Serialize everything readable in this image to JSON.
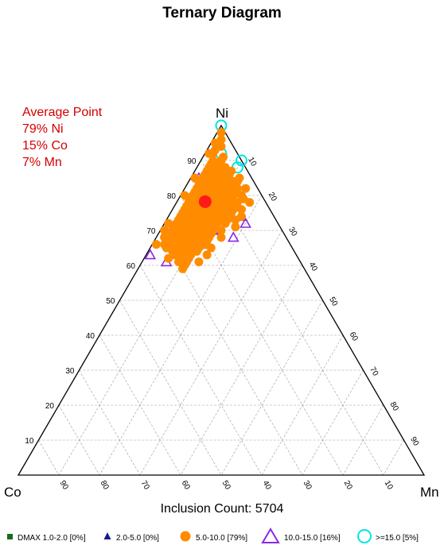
{
  "chart_data": {
    "type": "scatter",
    "subtype": "ternary",
    "title": "Ternary Diagram",
    "vertices": {
      "top": "Ni",
      "left": "Co",
      "right": "Mn"
    },
    "average_point": {
      "heading": "Average Point",
      "labels": [
        "79% Ni",
        "15% Co",
        "7% Mn"
      ],
      "ni": 79,
      "co": 15,
      "mn": 7,
      "color": "#ff1a1a"
    },
    "ticks": {
      "ni": [
        "10",
        "20",
        "30",
        "40",
        "50",
        "60",
        "70",
        "80",
        "90"
      ],
      "co": [
        "90",
        "80",
        "70",
        "60",
        "50",
        "40",
        "30",
        "20",
        "10"
      ],
      "mn": [
        "10",
        "20",
        "30",
        "40",
        "50",
        "60",
        "70",
        "80",
        "90"
      ]
    },
    "grid": true,
    "inclusion_count_label": "Inclusion Count: 5704",
    "legend": [
      {
        "label": "DMAX 1.0-2.0 [0%]",
        "marker": "square",
        "color": "#1a6b1a"
      },
      {
        "label": "2.0-5.0 [0%]",
        "marker": "triangle-filled",
        "color": "#1a1a8c"
      },
      {
        "label": "5.0-10.0 [79%]",
        "marker": "circle-filled",
        "color": "#ff8c00"
      },
      {
        "label": "10.0-15.0 [16%]",
        "marker": "triangle-open",
        "color": "#8a2be2"
      },
      {
        "label": ">=15.0 [5%]",
        "marker": "circle-open",
        "color": "#00e5e5"
      }
    ],
    "series": [
      {
        "name": "5.0-10.0 [79%]",
        "marker": "circle-filled",
        "color": "#ff8c00",
        "points": [
          [
            98,
            1,
            1
          ],
          [
            96,
            2,
            2
          ],
          [
            95,
            4,
            1
          ],
          [
            94,
            3,
            3
          ],
          [
            93,
            5,
            2
          ],
          [
            92,
            6,
            2
          ],
          [
            91,
            4,
            5
          ],
          [
            90,
            7,
            3
          ],
          [
            90,
            5,
            5
          ],
          [
            89,
            8,
            3
          ],
          [
            89,
            6,
            5
          ],
          [
            88,
            9,
            3
          ],
          [
            88,
            7,
            5
          ],
          [
            88,
            5,
            7
          ],
          [
            87,
            10,
            3
          ],
          [
            87,
            8,
            5
          ],
          [
            87,
            6,
            7
          ],
          [
            86,
            11,
            3
          ],
          [
            86,
            9,
            5
          ],
          [
            86,
            7,
            7
          ],
          [
            86,
            5,
            9
          ],
          [
            85,
            12,
            3
          ],
          [
            85,
            10,
            5
          ],
          [
            85,
            8,
            7
          ],
          [
            85,
            6,
            9
          ],
          [
            84,
            13,
            3
          ],
          [
            84,
            11,
            5
          ],
          [
            84,
            9,
            7
          ],
          [
            84,
            7,
            9
          ],
          [
            84,
            5,
            11
          ],
          [
            83,
            14,
            3
          ],
          [
            83,
            12,
            5
          ],
          [
            83,
            10,
            7
          ],
          [
            83,
            8,
            9
          ],
          [
            83,
            6,
            11
          ],
          [
            82,
            15,
            3
          ],
          [
            82,
            13,
            5
          ],
          [
            82,
            11,
            7
          ],
          [
            82,
            9,
            9
          ],
          [
            82,
            7,
            11
          ],
          [
            82,
            5,
            13
          ],
          [
            81,
            16,
            3
          ],
          [
            81,
            14,
            5
          ],
          [
            81,
            12,
            7
          ],
          [
            81,
            10,
            9
          ],
          [
            81,
            8,
            11
          ],
          [
            81,
            6,
            13
          ],
          [
            80,
            17,
            3
          ],
          [
            80,
            15,
            5
          ],
          [
            80,
            13,
            7
          ],
          [
            80,
            11,
            9
          ],
          [
            80,
            9,
            11
          ],
          [
            80,
            7,
            13
          ],
          [
            80,
            5,
            15
          ],
          [
            79,
            18,
            3
          ],
          [
            79,
            16,
            5
          ],
          [
            79,
            14,
            7
          ],
          [
            79,
            12,
            9
          ],
          [
            79,
            10,
            11
          ],
          [
            79,
            8,
            13
          ],
          [
            78,
            19,
            3
          ],
          [
            78,
            17,
            5
          ],
          [
            78,
            15,
            7
          ],
          [
            78,
            13,
            9
          ],
          [
            78,
            11,
            11
          ],
          [
            78,
            9,
            13
          ],
          [
            78,
            7,
            15
          ],
          [
            77,
            20,
            3
          ],
          [
            77,
            18,
            5
          ],
          [
            77,
            16,
            7
          ],
          [
            77,
            14,
            9
          ],
          [
            77,
            12,
            11
          ],
          [
            77,
            10,
            13
          ],
          [
            77,
            8,
            15
          ],
          [
            76,
            21,
            3
          ],
          [
            76,
            19,
            5
          ],
          [
            76,
            17,
            7
          ],
          [
            76,
            15,
            9
          ],
          [
            76,
            13,
            11
          ],
          [
            76,
            11,
            13
          ],
          [
            76,
            9,
            15
          ],
          [
            75,
            22,
            3
          ],
          [
            75,
            20,
            5
          ],
          [
            75,
            18,
            7
          ],
          [
            75,
            16,
            9
          ],
          [
            75,
            14,
            11
          ],
          [
            75,
            12,
            13
          ],
          [
            75,
            10,
            15
          ],
          [
            74,
            23,
            3
          ],
          [
            74,
            21,
            5
          ],
          [
            74,
            19,
            7
          ],
          [
            74,
            17,
            9
          ],
          [
            74,
            15,
            11
          ],
          [
            74,
            13,
            13
          ],
          [
            74,
            11,
            15
          ],
          [
            73,
            24,
            3
          ],
          [
            73,
            22,
            5
          ],
          [
            73,
            20,
            7
          ],
          [
            73,
            18,
            9
          ],
          [
            73,
            16,
            11
          ],
          [
            73,
            14,
            13
          ],
          [
            73,
            12,
            15
          ],
          [
            72,
            25,
            3
          ],
          [
            72,
            23,
            5
          ],
          [
            72,
            21,
            7
          ],
          [
            72,
            19,
            9
          ],
          [
            72,
            17,
            11
          ],
          [
            72,
            15,
            13
          ],
          [
            72,
            13,
            15
          ],
          [
            71,
            26,
            3
          ],
          [
            71,
            24,
            5
          ],
          [
            71,
            22,
            7
          ],
          [
            71,
            20,
            9
          ],
          [
            71,
            18,
            11
          ],
          [
            71,
            16,
            13
          ],
          [
            70,
            27,
            3
          ],
          [
            70,
            25,
            5
          ],
          [
            70,
            23,
            7
          ],
          [
            70,
            21,
            9
          ],
          [
            70,
            19,
            11
          ],
          [
            70,
            17,
            13
          ],
          [
            69,
            28,
            3
          ],
          [
            69,
            26,
            5
          ],
          [
            69,
            24,
            7
          ],
          [
            69,
            22,
            9
          ],
          [
            69,
            20,
            11
          ],
          [
            69,
            18,
            13
          ],
          [
            68,
            29,
            3
          ],
          [
            68,
            27,
            5
          ],
          [
            68,
            25,
            7
          ],
          [
            68,
            23,
            9
          ],
          [
            68,
            21,
            11
          ],
          [
            68,
            19,
            13
          ],
          [
            67,
            30,
            3
          ],
          [
            67,
            28,
            5
          ],
          [
            67,
            26,
            7
          ],
          [
            67,
            24,
            9
          ],
          [
            67,
            22,
            11
          ],
          [
            67,
            20,
            13
          ],
          [
            66,
            31,
            3
          ],
          [
            66,
            29,
            5
          ],
          [
            66,
            27,
            7
          ],
          [
            66,
            25,
            9
          ],
          [
            66,
            23,
            11
          ],
          [
            65,
            31,
            4
          ],
          [
            65,
            29,
            6
          ],
          [
            65,
            27,
            8
          ],
          [
            65,
            25,
            10
          ],
          [
            65,
            23,
            12
          ],
          [
            64,
            30,
            6
          ],
          [
            64,
            28,
            8
          ],
          [
            64,
            26,
            10
          ],
          [
            64,
            24,
            12
          ],
          [
            63,
            30,
            7
          ],
          [
            63,
            28,
            9
          ],
          [
            63,
            26,
            11
          ],
          [
            62,
            29,
            9
          ],
          [
            62,
            27,
            11
          ],
          [
            61,
            30,
            9
          ],
          [
            61,
            28,
            11
          ],
          [
            60,
            29,
            11
          ],
          [
            59,
            30,
            11
          ],
          [
            66,
            21,
            13
          ],
          [
            70,
            15,
            15
          ],
          [
            73,
            10,
            17
          ],
          [
            76,
            7,
            17
          ],
          [
            79,
            5,
            16
          ],
          [
            84,
            4,
            12
          ],
          [
            87,
            4,
            9
          ],
          [
            85,
            3,
            12
          ],
          [
            82,
            3,
            15
          ],
          [
            78,
            4,
            18
          ],
          [
            74,
            8,
            18
          ],
          [
            71,
            11,
            18
          ],
          [
            68,
            16,
            16
          ],
          [
            65,
            20,
            15
          ],
          [
            63,
            22,
            15
          ],
          [
            61,
            25,
            14
          ],
          [
            62,
            32,
            6
          ],
          [
            68,
            30,
            2
          ],
          [
            72,
            27,
            1
          ],
          [
            80,
            19,
            1
          ],
          [
            85,
            14,
            1
          ],
          [
            92,
            7,
            1
          ],
          [
            70,
            29,
            1
          ],
          [
            66,
            33,
            1
          ]
        ]
      },
      {
        "name": "10.0-15.0 [16%]",
        "marker": "triangle-open",
        "color": "#8a2be2",
        "points": [
          [
            63,
            36,
            1
          ],
          [
            61,
            33,
            6
          ],
          [
            68,
            13,
            19
          ],
          [
            72,
            8,
            20
          ],
          [
            74,
            8,
            18
          ],
          [
            69,
            20,
            11
          ],
          [
            82,
            15,
            3
          ],
          [
            85,
            13,
            2
          ],
          [
            66,
            22,
            12
          ],
          [
            64,
            26,
            10
          ],
          [
            70,
            17,
            13
          ]
        ]
      },
      {
        "name": ">=15.0 [5%]",
        "marker": "circle-open",
        "color": "#00e5e5",
        "points": [
          [
            100,
            0,
            0
          ],
          [
            90,
            0,
            10
          ],
          [
            92,
            4,
            4
          ],
          [
            77,
            18,
            5
          ],
          [
            71,
            24,
            5
          ],
          [
            68,
            28,
            4
          ],
          [
            86,
            10,
            4
          ],
          [
            88,
            2,
            10
          ]
        ]
      }
    ]
  }
}
